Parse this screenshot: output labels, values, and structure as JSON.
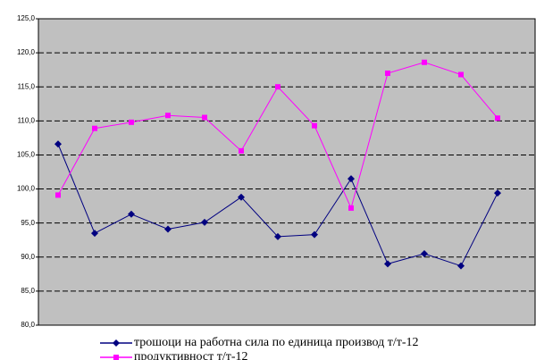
{
  "chart_data": {
    "type": "line",
    "categories": [
      null,
      null,
      null,
      null,
      null,
      null,
      null,
      null,
      null,
      null,
      null,
      null,
      null
    ],
    "series": [
      {
        "name": "трошоци на работна сила по единица производ т/т-12",
        "color": "#000080",
        "values": [
          106.6,
          93.5,
          96.3,
          94.1,
          95.1,
          98.8,
          93.0,
          93.3,
          101.5,
          89.0,
          90.5,
          88.7,
          99.4
        ]
      },
      {
        "name": "продуктивност т/т-12",
        "color": "#ff00ff",
        "values": [
          99.1,
          108.9,
          109.8,
          110.8,
          110.5,
          105.6,
          115.0,
          109.3,
          97.2,
          117.0,
          118.6,
          116.8,
          110.4
        ]
      }
    ],
    "ylim": [
      80,
      125
    ],
    "yticks": [
      {
        "value": 80,
        "label": "80,0"
      },
      {
        "value": 85,
        "label": "85,0"
      },
      {
        "value": 90,
        "label": "90,0"
      },
      {
        "value": 95,
        "label": "95,0"
      },
      {
        "value": 100,
        "label": "100,0"
      },
      {
        "value": 105,
        "label": "105,0"
      },
      {
        "value": 110,
        "label": "110,0"
      },
      {
        "value": 115,
        "label": "115,0"
      },
      {
        "value": 120,
        "label": "120,0"
      },
      {
        "value": 125,
        "label": "125,0"
      }
    ],
    "grid": true
  }
}
